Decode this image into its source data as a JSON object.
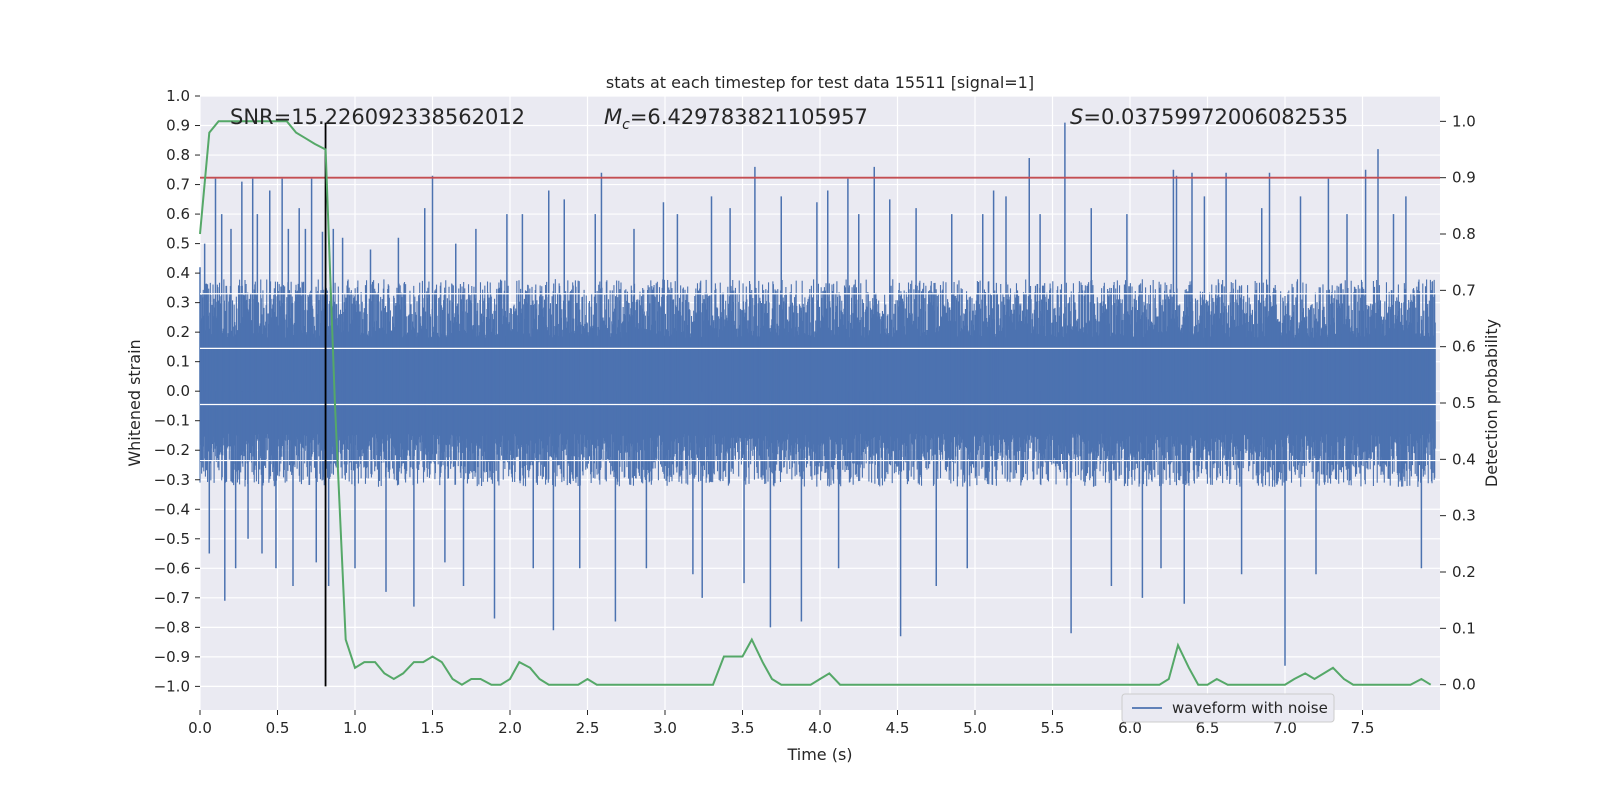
{
  "chart_data": {
    "type": "line",
    "title": "stats at each timestep for test data 15511 [signal=1]",
    "xlabel": "Time (s)",
    "ylabel": "Whitened strain",
    "y2label": "Detection probability",
    "xlim": [
      0.0,
      8.0
    ],
    "ylim": [
      -1.08,
      1.0
    ],
    "y2lim": [
      -0.045,
      1.045
    ],
    "x_ticks": [
      "0.0",
      "0.5",
      "1.0",
      "1.5",
      "2.0",
      "2.5",
      "3.0",
      "3.5",
      "4.0",
      "4.5",
      "5.0",
      "5.5",
      "6.0",
      "6.5",
      "7.0",
      "7.5"
    ],
    "y_ticks": [
      "1.0",
      "0.9",
      "0.8",
      "0.7",
      "0.6",
      "0.5",
      "0.4",
      "0.3",
      "0.2",
      "0.1",
      "0.0",
      "−0.1",
      "−0.2",
      "−0.3",
      "−0.4",
      "−0.5",
      "−0.6",
      "−0.7",
      "−0.8",
      "−0.9",
      "−1.0"
    ],
    "y2_ticks": [
      "1.0",
      "0.9",
      "0.8",
      "0.7",
      "0.6",
      "0.5",
      "0.4",
      "0.3",
      "0.2",
      "0.1",
      "0.0"
    ],
    "annotations": {
      "snr": "SNR=15.226092338562012",
      "mc_symbol": "M",
      "mc_sub": "c",
      "mc_value": "=6.429783821105957",
      "s_symbol": "S",
      "s_value": "=0.03759972006082535"
    },
    "legend": {
      "entries": [
        "waveform with noise"
      ],
      "placement": "lower-right"
    },
    "threshold": {
      "value": 0.9,
      "axis": "right",
      "color": "#c44e52"
    },
    "event_marker": {
      "x": 0.81,
      "color": "#000000"
    },
    "waveform": {
      "name": "waveform with noise",
      "color": "#4c72b0",
      "envelope_upper": 0.33,
      "envelope_lower": -0.24,
      "spikes": [
        [
          0.0,
          0.42
        ],
        [
          0.03,
          0.5
        ],
        [
          0.06,
          -0.55
        ],
        [
          0.1,
          0.72
        ],
        [
          0.14,
          0.6
        ],
        [
          0.16,
          -0.71
        ],
        [
          0.2,
          0.55
        ],
        [
          0.23,
          -0.6
        ],
        [
          0.27,
          0.71
        ],
        [
          0.31,
          -0.5
        ],
        [
          0.34,
          0.72
        ],
        [
          0.37,
          0.6
        ],
        [
          0.4,
          -0.55
        ],
        [
          0.45,
          0.68
        ],
        [
          0.49,
          -0.6
        ],
        [
          0.53,
          0.72
        ],
        [
          0.57,
          0.55
        ],
        [
          0.6,
          -0.66
        ],
        [
          0.64,
          0.62
        ],
        [
          0.68,
          0.55
        ],
        [
          0.72,
          0.72
        ],
        [
          0.75,
          -0.58
        ],
        [
          0.79,
          0.54
        ],
        [
          0.83,
          -0.66
        ],
        [
          0.86,
          0.55
        ],
        [
          0.92,
          0.52
        ],
        [
          1.0,
          -0.6
        ],
        [
          1.1,
          0.48
        ],
        [
          1.2,
          -0.68
        ],
        [
          1.28,
          0.52
        ],
        [
          1.38,
          -0.73
        ],
        [
          1.45,
          0.62
        ],
        [
          1.5,
          0.73
        ],
        [
          1.58,
          -0.58
        ],
        [
          1.65,
          0.5
        ],
        [
          1.7,
          -0.66
        ],
        [
          1.78,
          0.55
        ],
        [
          1.9,
          -0.77
        ],
        [
          1.98,
          0.6
        ],
        [
          2.08,
          0.6
        ],
        [
          2.15,
          -0.6
        ],
        [
          2.25,
          0.68
        ],
        [
          2.28,
          -0.81
        ],
        [
          2.35,
          0.65
        ],
        [
          2.45,
          -0.6
        ],
        [
          2.55,
          0.6
        ],
        [
          2.59,
          0.74
        ],
        [
          2.68,
          -0.78
        ],
        [
          2.8,
          0.55
        ],
        [
          2.88,
          -0.6
        ],
        [
          2.99,
          0.64
        ],
        [
          3.08,
          0.6
        ],
        [
          3.18,
          -0.62
        ],
        [
          3.24,
          -0.7
        ],
        [
          3.3,
          0.66
        ],
        [
          3.42,
          0.62
        ],
        [
          3.51,
          -0.65
        ],
        [
          3.58,
          0.76
        ],
        [
          3.68,
          -0.8
        ],
        [
          3.75,
          0.66
        ],
        [
          3.88,
          -0.78
        ],
        [
          3.98,
          0.64
        ],
        [
          4.05,
          0.68
        ],
        [
          4.12,
          -0.6
        ],
        [
          4.18,
          0.72
        ],
        [
          4.25,
          0.6
        ],
        [
          4.35,
          0.76
        ],
        [
          4.45,
          0.65
        ],
        [
          4.52,
          -0.83
        ],
        [
          4.62,
          0.62
        ],
        [
          4.75,
          -0.66
        ],
        [
          4.85,
          0.6
        ],
        [
          4.95,
          -0.6
        ],
        [
          5.05,
          0.6
        ],
        [
          5.12,
          0.68
        ],
        [
          5.2,
          0.66
        ],
        [
          5.35,
          0.79
        ],
        [
          5.42,
          0.6
        ],
        [
          5.58,
          0.91
        ],
        [
          5.62,
          -0.82
        ],
        [
          5.75,
          0.62
        ],
        [
          5.88,
          -0.66
        ],
        [
          5.98,
          0.6
        ],
        [
          6.08,
          -0.7
        ],
        [
          6.2,
          -0.6
        ],
        [
          6.28,
          0.75
        ],
        [
          6.3,
          0.73
        ],
        [
          6.35,
          -0.72
        ],
        [
          6.4,
          0.74
        ],
        [
          6.48,
          0.66
        ],
        [
          6.62,
          0.74
        ],
        [
          6.72,
          -0.62
        ],
        [
          6.85,
          0.62
        ],
        [
          6.9,
          0.74
        ],
        [
          7.0,
          -0.93
        ],
        [
          7.1,
          0.66
        ],
        [
          7.2,
          -0.62
        ],
        [
          7.28,
          0.72
        ],
        [
          7.4,
          0.6
        ],
        [
          7.52,
          0.75
        ],
        [
          7.6,
          0.82
        ],
        [
          7.7,
          0.6
        ],
        [
          7.78,
          0.66
        ],
        [
          7.88,
          -0.6
        ]
      ]
    },
    "probability": {
      "color": "#55a868",
      "x": [
        0.0,
        0.06,
        0.12,
        0.2,
        0.3,
        0.4,
        0.5,
        0.56,
        0.62,
        0.68,
        0.74,
        0.81,
        0.87,
        0.94,
        1.0,
        1.06,
        1.13,
        1.19,
        1.25,
        1.31,
        1.38,
        1.44,
        1.5,
        1.56,
        1.63,
        1.69,
        1.75,
        1.81,
        1.88,
        1.94,
        2.0,
        2.06,
        2.13,
        2.19,
        2.25,
        2.31,
        2.38,
        2.44,
        2.5,
        2.56,
        2.63,
        2.69,
        2.75,
        2.81,
        2.88,
        2.94,
        3.0,
        3.06,
        3.13,
        3.19,
        3.25,
        3.31,
        3.38,
        3.44,
        3.5,
        3.56,
        3.63,
        3.69,
        3.75,
        3.81,
        3.88,
        3.94,
        4.0,
        4.06,
        4.13,
        4.19,
        4.25,
        4.31,
        4.38,
        4.44,
        5.0,
        5.5,
        5.9,
        6.0,
        6.06,
        6.13,
        6.19,
        6.25,
        6.31,
        6.38,
        6.44,
        6.5,
        6.56,
        6.63,
        6.69,
        6.75,
        6.81,
        6.88,
        6.94,
        7.0,
        7.06,
        7.13,
        7.19,
        7.25,
        7.31,
        7.38,
        7.44,
        7.5,
        7.56,
        7.63,
        7.69,
        7.75,
        7.81,
        7.88,
        7.94
      ],
      "y": [
        0.8,
        0.98,
        1.0,
        1.0,
        1.0,
        1.0,
        1.0,
        1.0,
        0.98,
        0.97,
        0.96,
        0.95,
        0.5,
        0.08,
        0.03,
        0.04,
        0.04,
        0.02,
        0.01,
        0.02,
        0.04,
        0.04,
        0.05,
        0.04,
        0.01,
        0.0,
        0.01,
        0.01,
        0.0,
        0.0,
        0.01,
        0.04,
        0.03,
        0.01,
        0.0,
        0.0,
        0.0,
        0.0,
        0.01,
        0.0,
        0.0,
        0.0,
        0.0,
        0.0,
        0.0,
        0.0,
        0.0,
        0.0,
        0.0,
        0.0,
        0.0,
        0.0,
        0.05,
        0.05,
        0.05,
        0.08,
        0.04,
        0.01,
        0.0,
        0.0,
        0.0,
        0.0,
        0.01,
        0.02,
        0.0,
        0.0,
        0.0,
        0.0,
        0.0,
        0.0,
        0.0,
        0.0,
        0.0,
        0.0,
        0.0,
        0.0,
        0.0,
        0.01,
        0.07,
        0.03,
        0.0,
        0.0,
        0.01,
        0.0,
        0.0,
        0.0,
        0.0,
        0.0,
        0.0,
        0.0,
        0.01,
        0.02,
        0.01,
        0.02,
        0.03,
        0.01,
        0.0,
        0.0,
        0.0,
        0.0,
        0.0,
        0.0,
        0.0,
        0.01,
        0.0
      ]
    }
  }
}
